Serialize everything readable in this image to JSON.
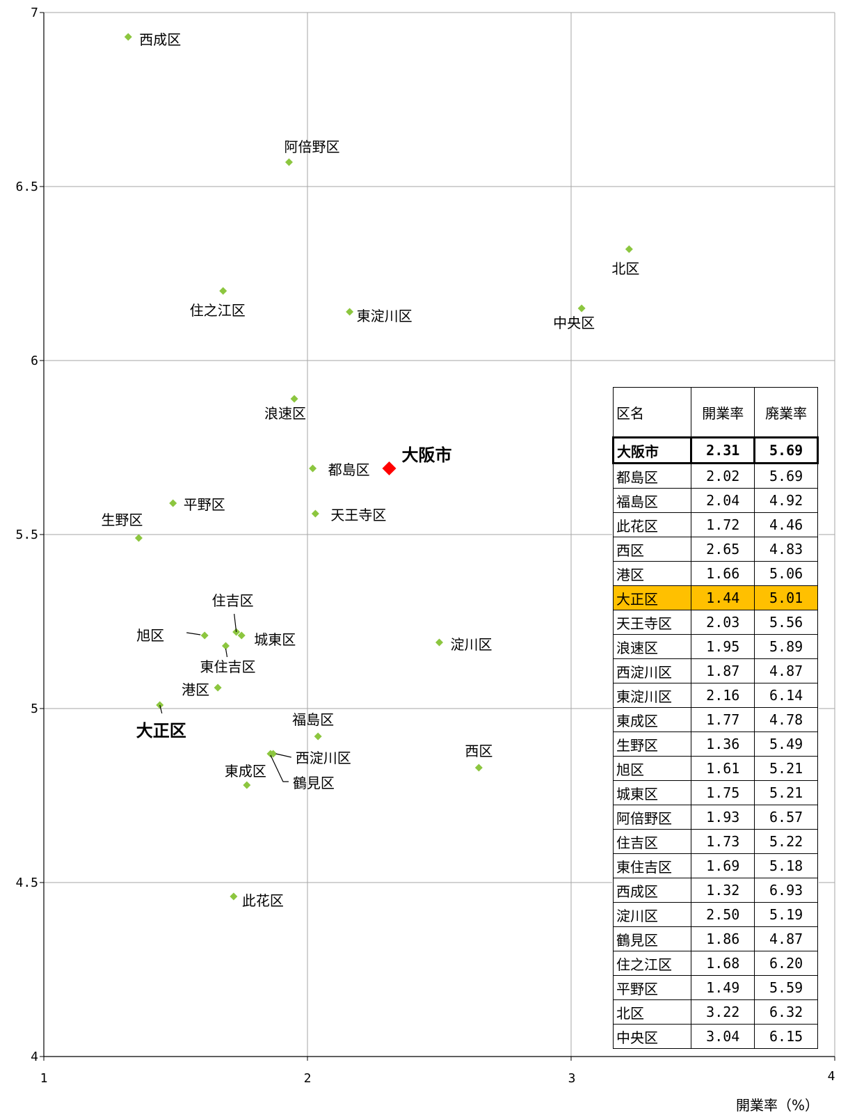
{
  "chart_data": {
    "type": "scatter",
    "xlabel": "開業率（%）",
    "ylabel": "",
    "xlim": [
      1,
      4
    ],
    "ylim": [
      4,
      7
    ],
    "xticks": [
      "1",
      "2",
      "3",
      "4"
    ],
    "yticks": [
      "4",
      "4.5",
      "5",
      "5.5",
      "6",
      "6.5",
      "7"
    ],
    "grid": true,
    "point_color": "#8cc63f",
    "highlight_color": "#ff0000",
    "points": [
      {
        "name": "西成区",
        "x": 1.32,
        "y": 6.93
      },
      {
        "name": "阿倍野区",
        "x": 1.93,
        "y": 6.57
      },
      {
        "name": "北区",
        "x": 3.22,
        "y": 6.32
      },
      {
        "name": "住之江区",
        "x": 1.68,
        "y": 6.2
      },
      {
        "name": "東淀川区",
        "x": 2.16,
        "y": 6.14
      },
      {
        "name": "中央区",
        "x": 3.04,
        "y": 6.15
      },
      {
        "name": "浪速区",
        "x": 1.95,
        "y": 5.89
      },
      {
        "name": "都島区",
        "x": 2.02,
        "y": 5.69
      },
      {
        "name": "平野区",
        "x": 1.49,
        "y": 5.59
      },
      {
        "name": "天王寺区",
        "x": 2.03,
        "y": 5.56
      },
      {
        "name": "生野区",
        "x": 1.36,
        "y": 5.49
      },
      {
        "name": "住吉区",
        "x": 1.73,
        "y": 5.22
      },
      {
        "name": "旭区",
        "x": 1.61,
        "y": 5.21
      },
      {
        "name": "城東区",
        "x": 1.75,
        "y": 5.21
      },
      {
        "name": "東住吉区",
        "x": 1.69,
        "y": 5.18
      },
      {
        "name": "淀川区",
        "x": 2.5,
        "y": 5.19
      },
      {
        "name": "港区",
        "x": 1.66,
        "y": 5.06
      },
      {
        "name": "大正区",
        "x": 1.44,
        "y": 5.01
      },
      {
        "name": "福島区",
        "x": 2.04,
        "y": 4.92
      },
      {
        "name": "西淀川区",
        "x": 1.87,
        "y": 4.87
      },
      {
        "name": "鶴見区",
        "x": 1.86,
        "y": 4.87
      },
      {
        "name": "西区",
        "x": 2.65,
        "y": 4.83
      },
      {
        "name": "東成区",
        "x": 1.77,
        "y": 4.78
      },
      {
        "name": "此花区",
        "x": 1.72,
        "y": 4.46
      },
      {
        "name": "大阪市",
        "x": 2.31,
        "y": 5.69
      }
    ],
    "table": {
      "headers": [
        "区名",
        "開業率",
        "廃業率"
      ],
      "rows": [
        [
          "大阪市",
          "2.31",
          "5.69"
        ],
        [
          "都島区",
          "2.02",
          "5.69"
        ],
        [
          "福島区",
          "2.04",
          "4.92"
        ],
        [
          "此花区",
          "1.72",
          "4.46"
        ],
        [
          "西区",
          "2.65",
          "4.83"
        ],
        [
          "港区",
          "1.66",
          "5.06"
        ],
        [
          "大正区",
          "1.44",
          "5.01"
        ],
        [
          "天王寺区",
          "2.03",
          "5.56"
        ],
        [
          "浪速区",
          "1.95",
          "5.89"
        ],
        [
          "西淀川区",
          "1.87",
          "4.87"
        ],
        [
          "東淀川区",
          "2.16",
          "6.14"
        ],
        [
          "東成区",
          "1.77",
          "4.78"
        ],
        [
          "生野区",
          "1.36",
          "5.49"
        ],
        [
          "旭区",
          "1.61",
          "5.21"
        ],
        [
          "城東区",
          "1.75",
          "5.21"
        ],
        [
          "阿倍野区",
          "1.93",
          "6.57"
        ],
        [
          "住吉区",
          "1.73",
          "5.22"
        ],
        [
          "東住吉区",
          "1.69",
          "5.18"
        ],
        [
          "西成区",
          "1.32",
          "6.93"
        ],
        [
          "淀川区",
          "2.50",
          "5.19"
        ],
        [
          "鶴見区",
          "1.86",
          "4.87"
        ],
        [
          "住之江区",
          "1.68",
          "6.20"
        ],
        [
          "平野区",
          "1.49",
          "5.59"
        ],
        [
          "北区",
          "3.22",
          "6.32"
        ],
        [
          "中央区",
          "3.04",
          "6.15"
        ]
      ],
      "highlight_color": "#ffc000"
    }
  }
}
